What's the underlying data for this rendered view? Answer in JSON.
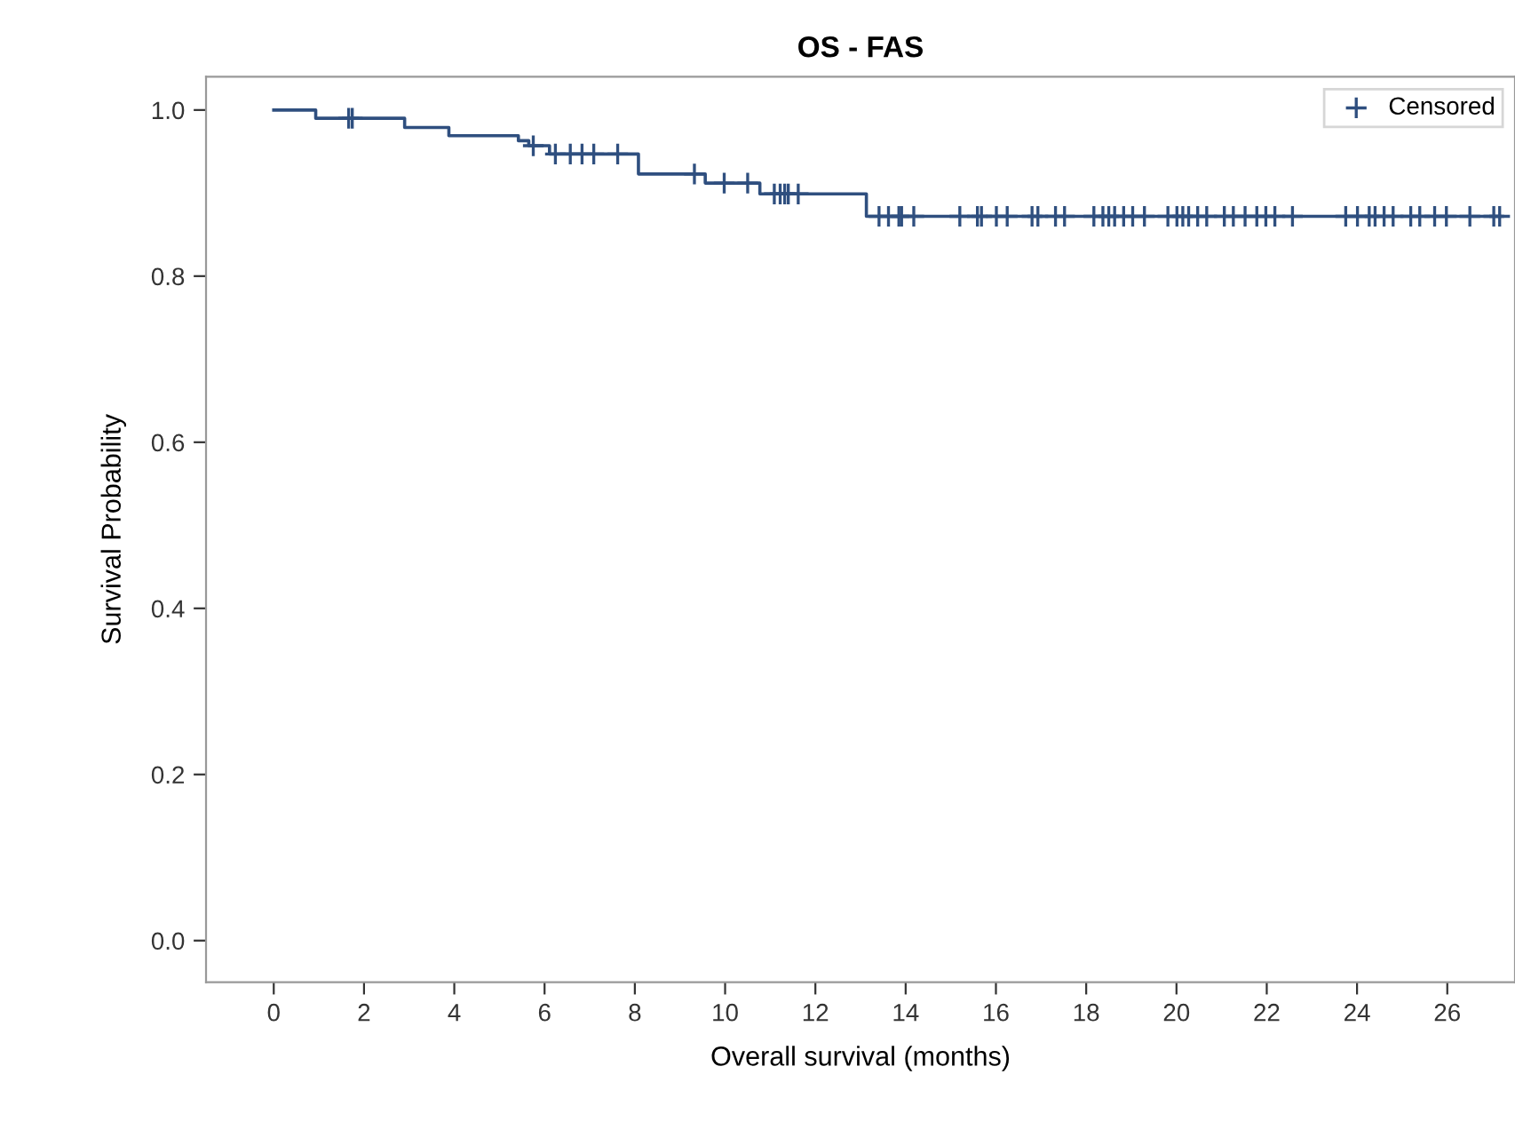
{
  "chart_data": {
    "type": "step",
    "title": "OS - FAS",
    "xlabel": "Overall survival (months)",
    "ylabel": "Survival Probability",
    "xlim": [
      -1.5,
      27.5
    ],
    "xticks": [
      0,
      2,
      4,
      6,
      8,
      10,
      12,
      14,
      16,
      18,
      20,
      22,
      24,
      26
    ],
    "ylim": [
      -0.05,
      1.04
    ],
    "yticks": [
      {
        "value": 0,
        "label": "0.0"
      },
      0.2,
      0.4,
      0.6,
      0.8,
      {
        "value": 1,
        "label": "1.0"
      }
    ],
    "grid": false,
    "legend": "top right",
    "series": [
      {
        "color": "#2f4f7f",
        "line_style": "solid",
        "marker": "none",
        "x": [
          0,
          0.93,
          2.9,
          3.88,
          5.42,
          5.65,
          6.11,
          8.08,
          9.56,
          10.77,
          13.13,
          27.16
        ],
        "values": [
          1,
          0.99,
          0.979,
          0.969,
          0.963,
          0.957,
          0.947,
          0.923,
          0.912,
          0.899,
          0.872,
          0.872
        ]
      },
      {
        "type": "scatter",
        "name": "Censored",
        "color": "#2f4f7f",
        "marker": "cross",
        "x": [
          1.66,
          1.74,
          5.75,
          6.24,
          6.57,
          6.83,
          7.09,
          7.62,
          9.32,
          9.98,
          10.5,
          11.09,
          11.22,
          11.32,
          11.4,
          11.62,
          13.41,
          13.62,
          13.85,
          13.91,
          14.18,
          15.2,
          15.59,
          15.68,
          16.01,
          16.25,
          16.8,
          16.93,
          17.32,
          17.52,
          18.17,
          18.37,
          18.5,
          18.63,
          18.83,
          19.03,
          19.29,
          19.81,
          20.01,
          20.14,
          20.27,
          20.47,
          20.67,
          21.06,
          21.26,
          21.52,
          21.78,
          21.98,
          22.18,
          22.57,
          23.75,
          24.01,
          24.27,
          24.4,
          24.6,
          24.8,
          25.19,
          25.39,
          25.72,
          25.98,
          26.5,
          27.03,
          27.16
        ],
        "values": [
          0.99,
          0.99,
          0.957,
          0.947,
          0.947,
          0.947,
          0.947,
          0.947,
          0.923,
          0.912,
          0.912,
          0.899,
          0.899,
          0.899,
          0.899,
          0.899,
          0.872,
          0.872,
          0.872,
          0.872,
          0.872,
          0.872,
          0.872,
          0.872,
          0.872,
          0.872,
          0.872,
          0.872,
          0.872,
          0.872,
          0.872,
          0.872,
          0.872,
          0.872,
          0.872,
          0.872,
          0.872,
          0.872,
          0.872,
          0.872,
          0.872,
          0.872,
          0.872,
          0.872,
          0.872,
          0.872,
          0.872,
          0.872,
          0.872,
          0.872,
          0.872,
          0.872,
          0.872,
          0.872,
          0.872,
          0.872,
          0.872,
          0.872,
          0.872,
          0.872,
          0.872,
          0.872,
          0.872
        ]
      }
    ]
  }
}
